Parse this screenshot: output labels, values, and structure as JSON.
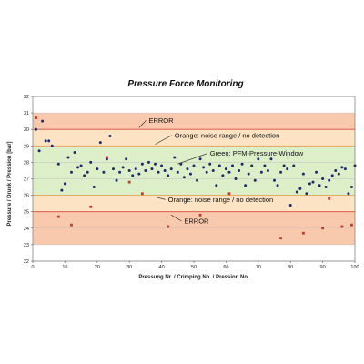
{
  "chart_data": {
    "type": "scatter",
    "title": "Pressure Force Monitoring",
    "xlabel": "Pressung Nr. / Crimping No. / Pression No.",
    "ylabel": "Pressure / Druck / Pression [bar]",
    "xlim": [
      0,
      100
    ],
    "ylim": [
      22,
      32
    ],
    "x_ticks": [
      0,
      10,
      20,
      30,
      40,
      50,
      60,
      70,
      80,
      90,
      100
    ],
    "y_ticks": [
      22,
      23,
      24,
      25,
      26,
      27,
      28,
      29,
      30,
      31,
      32
    ],
    "grid": true,
    "bands": [
      {
        "from": 23,
        "to": 25,
        "color": "#f9c9ad"
      },
      {
        "from": 25,
        "to": 26,
        "color": "#fbe3c4"
      },
      {
        "from": 26,
        "to": 29,
        "color": "#dcefc8"
      },
      {
        "from": 29,
        "to": 30,
        "color": "#fbe3c4"
      },
      {
        "from": 30,
        "to": 31,
        "color": "#f9c9ad"
      }
    ],
    "limit_lines": [
      {
        "y": 30.0,
        "color": "#d94a3a"
      },
      {
        "y": 29.0,
        "color": "#e59a4a"
      },
      {
        "y": 26.0,
        "color": "#e59a4a"
      },
      {
        "y": 25.0,
        "color": "#d94a3a"
      }
    ],
    "annotations": [
      {
        "text": "ERROR",
        "x": 36,
        "y": 30.4,
        "arrow_to": [
          33,
          30.1
        ]
      },
      {
        "text": "Orange:  noise range / no detection",
        "x": 44,
        "y": 29.5,
        "arrow_to": [
          38,
          29.1
        ]
      },
      {
        "text": "Green: PFM-Pressure-Window",
        "x": 55,
        "y": 28.4,
        "arrow_to": [
          45,
          27.9
        ]
      },
      {
        "text": "Orange:  noise range / no detection",
        "x": 42,
        "y": 25.6,
        "arrow_to": [
          38,
          25.9
        ]
      },
      {
        "text": "ERROR",
        "x": 47,
        "y": 24.3,
        "arrow_to": [
          43,
          24.8
        ]
      }
    ],
    "series": [
      {
        "marker": "circle",
        "color": "#1c2a6e",
        "x": [
          1,
          2,
          3,
          4,
          5,
          6,
          8,
          9,
          10,
          11,
          12,
          13,
          14,
          15,
          16,
          17,
          18,
          19,
          20,
          21,
          22,
          23,
          24,
          25,
          26,
          27,
          28,
          29,
          30,
          31,
          32,
          33,
          34,
          35,
          36,
          37,
          38,
          39,
          40,
          41,
          42,
          43,
          44,
          45,
          46,
          47,
          48,
          49,
          50,
          51,
          52,
          53,
          54,
          55,
          56,
          57,
          58,
          59,
          60,
          61,
          62,
          63,
          64,
          65,
          66,
          67,
          68,
          69,
          70,
          71,
          72,
          73,
          74,
          75,
          76,
          77,
          78,
          79,
          80,
          81,
          82,
          83,
          84,
          85,
          86,
          87,
          88,
          89,
          90,
          91,
          92,
          93,
          94,
          95,
          96,
          97,
          98,
          99,
          100
        ],
        "y": [
          30.0,
          28.7,
          30.5,
          29.3,
          29.3,
          29.0,
          27.9,
          26.3,
          26.7,
          28.3,
          27.4,
          28.6,
          27.7,
          27.8,
          27.2,
          27.4,
          28.0,
          26.5,
          27.6,
          29.2,
          27.4,
          28.2,
          29.6,
          27.6,
          26.9,
          27.4,
          27.7,
          28.2,
          27.5,
          27.2,
          27.6,
          27.3,
          27.9,
          27.5,
          28.0,
          27.6,
          27.9,
          27.4,
          27.8,
          27.5,
          27.2,
          27.6,
          28.3,
          27.4,
          27.9,
          27.1,
          27.6,
          27.3,
          27.8,
          26.9,
          28.2,
          27.7,
          27.4,
          27.9,
          27.5,
          26.6,
          27.8,
          27.2,
          27.6,
          27.4,
          27.8,
          27.0,
          27.5,
          27.9,
          26.6,
          27.3,
          27.8,
          26.9,
          28.2,
          27.4,
          27.8,
          27.5,
          28.2,
          26.9,
          26.6,
          27.4,
          27.8,
          27.6,
          25.4,
          27.8,
          26.2,
          26.4,
          27.3,
          26.1,
          26.7,
          26.8,
          27.4,
          26.6,
          27.0,
          26.5,
          26.9,
          27.2,
          27.5,
          27.3,
          27.7,
          27.6,
          26.1,
          26.5,
          27.8
        ]
      },
      {
        "marker": "x",
        "color": "#c0392b",
        "x": [
          1,
          8,
          12,
          18,
          23,
          30,
          34,
          42,
          52,
          61,
          77,
          84,
          90,
          92,
          96,
          99
        ],
        "y": [
          30.7,
          24.7,
          24.2,
          25.3,
          28.3,
          26.8,
          26.1,
          24.1,
          24.8,
          26.1,
          23.4,
          23.7,
          24.0,
          25.8,
          24.1,
          24.2
        ]
      }
    ]
  }
}
